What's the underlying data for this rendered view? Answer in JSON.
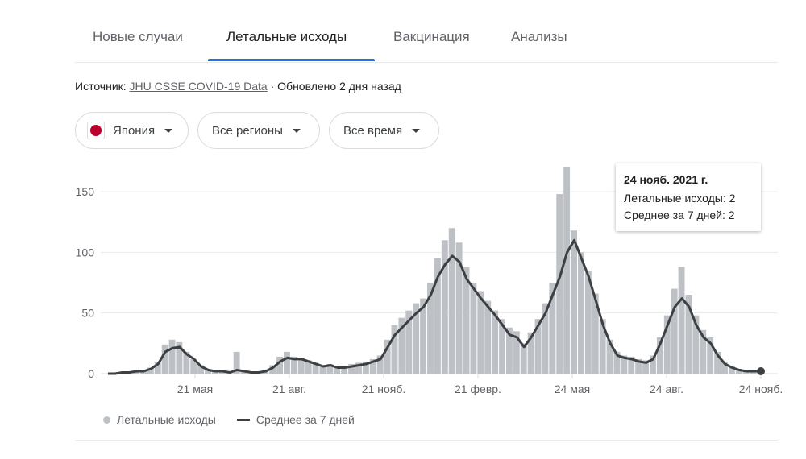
{
  "tabs": [
    {
      "label": "Новые случаи"
    },
    {
      "label": "Летальные исходы"
    },
    {
      "label": "Вакцинация"
    },
    {
      "label": "Анализы"
    }
  ],
  "active_tab": 1,
  "accent_color": "#1a73e8",
  "source": {
    "prefix": "Источник: ",
    "link": "JHU CSSE COVID-19 Data",
    "suffix": " · Обновлено 2 дня назад"
  },
  "filters": [
    {
      "label": "Япония",
      "icon": "japan-flag-icon"
    },
    {
      "label": "Все регионы"
    },
    {
      "label": "Все время"
    }
  ],
  "tooltip": {
    "date": "24 нояб. 2021 г.",
    "line1": "Летальные исходы: 2",
    "line2": "Среднее за 7 дней: 2"
  },
  "legend": {
    "bars": "Летальные исходы",
    "line": "Среднее за 7 дней"
  },
  "chart_data": {
    "type": "bar+line",
    "ylim": [
      0,
      170
    ],
    "yticks": [
      0,
      50,
      100,
      150
    ],
    "xticks": [
      {
        "date": "2020-05-21",
        "label": "21 мая"
      },
      {
        "date": "2020-08-21",
        "label": "21 авг."
      },
      {
        "date": "2020-11-21",
        "label": "21 нояб."
      },
      {
        "date": "2021-02-21",
        "label": "21 февр."
      },
      {
        "date": "2021-05-24",
        "label": "24 мая"
      },
      {
        "date": "2021-08-24",
        "label": "24 авг."
      },
      {
        "date": "2021-11-24",
        "label": "24 нояб."
      }
    ],
    "grid": true,
    "legend_position": "bottom-left",
    "bar_color": "#bdc1c6",
    "line_color": "#3c4043",
    "dates": [
      "2020-02-26",
      "2020-03-04",
      "2020-03-11",
      "2020-03-18",
      "2020-03-25",
      "2020-04-01",
      "2020-04-08",
      "2020-04-15",
      "2020-04-22",
      "2020-04-29",
      "2020-05-06",
      "2020-05-13",
      "2020-05-20",
      "2020-05-27",
      "2020-06-03",
      "2020-06-10",
      "2020-06-17",
      "2020-06-24",
      "2020-07-01",
      "2020-07-08",
      "2020-07-15",
      "2020-07-22",
      "2020-07-29",
      "2020-08-05",
      "2020-08-12",
      "2020-08-19",
      "2020-08-26",
      "2020-09-02",
      "2020-09-09",
      "2020-09-16",
      "2020-09-23",
      "2020-09-30",
      "2020-10-07",
      "2020-10-14",
      "2020-10-21",
      "2020-10-28",
      "2020-11-04",
      "2020-11-11",
      "2020-11-18",
      "2020-11-25",
      "2020-12-02",
      "2020-12-09",
      "2020-12-16",
      "2020-12-23",
      "2020-12-30",
      "2021-01-06",
      "2021-01-13",
      "2021-01-20",
      "2021-01-27",
      "2021-02-03",
      "2021-02-10",
      "2021-02-17",
      "2021-02-24",
      "2021-03-03",
      "2021-03-10",
      "2021-03-17",
      "2021-03-24",
      "2021-03-31",
      "2021-04-07",
      "2021-04-14",
      "2021-04-21",
      "2021-04-28",
      "2021-05-05",
      "2021-05-12",
      "2021-05-19",
      "2021-05-26",
      "2021-06-02",
      "2021-06-09",
      "2021-06-16",
      "2021-06-23",
      "2021-06-30",
      "2021-07-07",
      "2021-07-14",
      "2021-07-21",
      "2021-07-28",
      "2021-08-04",
      "2021-08-11",
      "2021-08-18",
      "2021-08-25",
      "2021-09-01",
      "2021-09-08",
      "2021-09-15",
      "2021-09-22",
      "2021-09-29",
      "2021-10-06",
      "2021-10-13",
      "2021-10-20",
      "2021-10-27",
      "2021-11-03",
      "2021-11-10",
      "2021-11-17",
      "2021-11-24"
    ],
    "series": [
      {
        "name": "Летальные исходы",
        "kind": "bar",
        "values": [
          0,
          1,
          1,
          2,
          2,
          3,
          5,
          10,
          24,
          28,
          26,
          18,
          12,
          7,
          4,
          3,
          2,
          2,
          18,
          3,
          1,
          1,
          3,
          7,
          14,
          18,
          14,
          13,
          11,
          9,
          7,
          8,
          6,
          6,
          8,
          9,
          10,
          12,
          15,
          28,
          40,
          46,
          52,
          58,
          62,
          75,
          95,
          110,
          120,
          108,
          88,
          75,
          68,
          60,
          52,
          45,
          38,
          35,
          25,
          34,
          45,
          58,
          75,
          148,
          170,
          118,
          100,
          85,
          66,
          45,
          28,
          18,
          15,
          14,
          12,
          11,
          15,
          30,
          48,
          70,
          88,
          65,
          48,
          36,
          30,
          18,
          10,
          6,
          4,
          3,
          2,
          2
        ]
      },
      {
        "name": "Среднее за 7 дней",
        "kind": "line",
        "values": [
          0,
          0,
          1,
          1,
          2,
          2,
          4,
          8,
          18,
          21,
          22,
          16,
          12,
          6,
          3,
          2,
          2,
          1,
          3,
          2,
          1,
          1,
          2,
          5,
          10,
          13,
          12,
          12,
          10,
          8,
          6,
          7,
          5,
          5,
          6,
          7,
          8,
          10,
          12,
          22,
          32,
          38,
          44,
          50,
          55,
          65,
          80,
          90,
          97,
          92,
          78,
          70,
          62,
          55,
          48,
          40,
          32,
          30,
          22,
          30,
          40,
          50,
          65,
          80,
          100,
          110,
          95,
          80,
          60,
          40,
          25,
          15,
          13,
          12,
          10,
          9,
          12,
          25,
          40,
          55,
          62,
          55,
          40,
          30,
          25,
          15,
          8,
          5,
          3,
          2,
          2,
          2
        ]
      }
    ]
  }
}
